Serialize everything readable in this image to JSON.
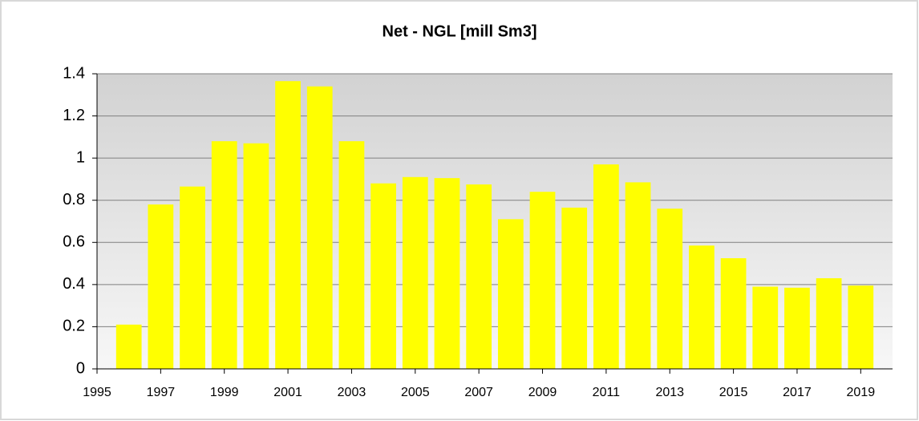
{
  "chart_data": {
    "type": "bar",
    "title": "Net - NGL [mill Sm3]",
    "x": [
      1996,
      1997,
      1998,
      1999,
      2000,
      2001,
      2002,
      2003,
      2004,
      2005,
      2006,
      2007,
      2008,
      2009,
      2010,
      2011,
      2012,
      2013,
      2014,
      2015,
      2016,
      2017,
      2018,
      2019
    ],
    "values": [
      0.21,
      0.78,
      0.865,
      1.08,
      1.07,
      1.365,
      1.34,
      1.08,
      0.88,
      0.91,
      0.905,
      0.875,
      0.71,
      0.84,
      0.765,
      0.97,
      0.885,
      0.76,
      0.585,
      0.525,
      0.39,
      0.385,
      0.43,
      0.395
    ],
    "color": "#ffff00",
    "xlim": [
      1995,
      2020
    ],
    "xticks": [
      1995,
      1997,
      1999,
      2001,
      2003,
      2005,
      2007,
      2009,
      2011,
      2013,
      2015,
      2017,
      2019
    ],
    "ylim": [
      0,
      1.4
    ],
    "yticks": [
      0,
      0.2,
      0.4,
      0.6,
      0.8,
      1,
      1.2,
      1.4
    ],
    "grid": true
  }
}
